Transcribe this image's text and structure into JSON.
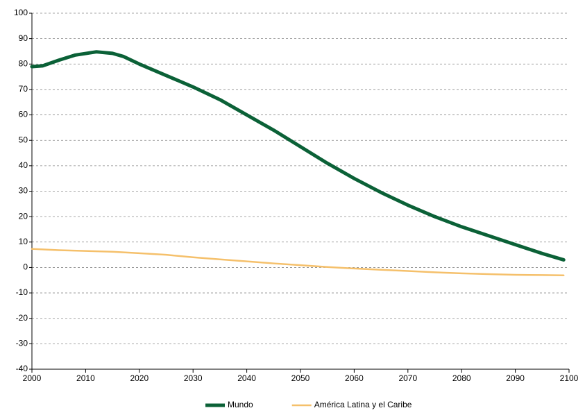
{
  "chart_data": {
    "type": "line",
    "xlim": [
      2000,
      2100
    ],
    "xticks": [
      2000,
      2010,
      2020,
      2030,
      2040,
      2050,
      2060,
      2070,
      2080,
      2090,
      2100
    ],
    "ylim": [
      -40,
      100
    ],
    "yticks": [
      -40,
      -30,
      -20,
      -10,
      0,
      10,
      20,
      30,
      40,
      50,
      60,
      70,
      80,
      90,
      100
    ],
    "grid": true,
    "legend": "bottom",
    "series": [
      {
        "name": "Mundo",
        "color": "#0b6137",
        "width": 5,
        "x": [
          2000,
          2002,
          2005,
          2008,
          2012,
          2015,
          2017,
          2020,
          2025,
          2030,
          2035,
          2040,
          2045,
          2050,
          2055,
          2060,
          2065,
          2070,
          2075,
          2080,
          2085,
          2090,
          2095,
          2099
        ],
        "values": [
          79,
          79.3,
          81.5,
          83.5,
          84.8,
          84.2,
          83,
          80,
          75.5,
          71,
          66,
          60,
          54,
          47.5,
          41,
          35,
          29.5,
          24.5,
          20,
          16,
          12.5,
          9,
          5.5,
          3
        ]
      },
      {
        "name": "América Latina y el Caribe",
        "color": "#f5c06b",
        "width": 2.5,
        "x": [
          2000,
          2005,
          2010,
          2015,
          2020,
          2025,
          2030,
          2035,
          2040,
          2045,
          2050,
          2055,
          2060,
          2065,
          2070,
          2075,
          2080,
          2085,
          2090,
          2095,
          2099
        ],
        "values": [
          7.3,
          6.8,
          6.5,
          6.2,
          5.6,
          5,
          4,
          3.2,
          2.4,
          1.6,
          0.9,
          0.2,
          -0.4,
          -0.9,
          -1.4,
          -1.9,
          -2.3,
          -2.6,
          -2.9,
          -3,
          -3.1
        ]
      }
    ]
  }
}
